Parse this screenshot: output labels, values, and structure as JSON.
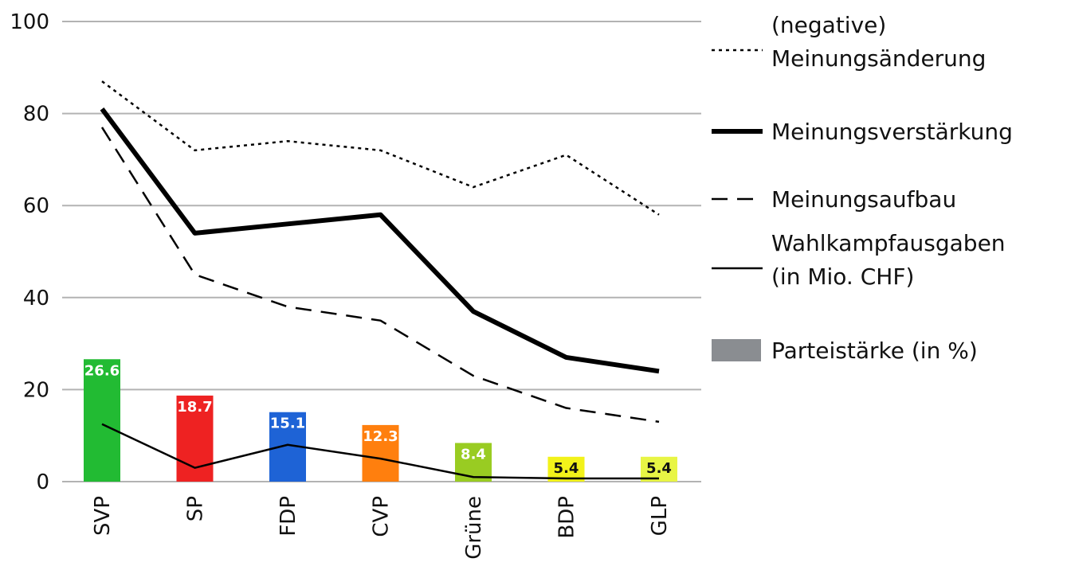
{
  "chart_data": {
    "type": "line",
    "categories": [
      "SVP",
      "SP",
      "FDP",
      "CVP",
      "Grüne",
      "BDP",
      "GLP"
    ],
    "ylim": [
      0,
      100
    ],
    "yticks": [
      "0",
      "20",
      "40",
      "60",
      "80",
      "100"
    ],
    "grid": true,
    "legend_position": "right",
    "series": [
      {
        "name": "(negative) Meinungsänderung",
        "style": "dotted",
        "values": [
          87,
          72,
          74,
          72,
          64,
          71,
          58
        ]
      },
      {
        "name": "Meinungsverstärkung",
        "style": "thick",
        "values": [
          81,
          54,
          56,
          58,
          37,
          27,
          24
        ]
      },
      {
        "name": "Meinungsaufbau",
        "style": "dashed",
        "values": [
          77,
          45,
          38,
          35,
          23,
          16,
          13
        ]
      },
      {
        "name": "Wahlkampfausgaben (in Mio. CHF)",
        "style": "thin",
        "values": [
          12.5,
          3,
          8,
          5,
          1,
          0.7,
          0.7
        ]
      }
    ],
    "bars": {
      "name": "Parteistärke (in %)",
      "values": [
        26.6,
        18.7,
        15.1,
        12.3,
        8.4,
        5.4,
        5.4
      ],
      "labels": [
        "26.6",
        "18.7",
        "15.1",
        "12.3",
        "8.4",
        "5.4",
        "5.4"
      ],
      "colors": [
        "#22bb33",
        "#ee2222",
        "#1e63d6",
        "#ff7f0e",
        "#99cc22",
        "#f2f21a",
        "#e8f545"
      ],
      "label_colors": [
        "#ffffff",
        "#ffffff",
        "#ffffff",
        "#ffffff",
        "#ffffff",
        "#111111",
        "#111111"
      ]
    }
  },
  "legend": {
    "items": [
      {
        "lines": [
          "(negative)",
          "Meinungsänderung"
        ],
        "style": "dotted"
      },
      {
        "lines": [
          "Meinungsverstärkung"
        ],
        "style": "thick"
      },
      {
        "lines": [
          "Meinungsaufbau"
        ],
        "style": "dashed"
      },
      {
        "lines": [
          "Wahlkampfausgaben",
          "(in Mio. CHF)"
        ],
        "style": "thin"
      },
      {
        "lines": [
          "Parteistärke (in %)"
        ],
        "style": "bar",
        "color": "#8a8d91"
      }
    ]
  },
  "colors": {
    "grid": "#b3b3b3",
    "line": "#000000",
    "axis_text": "#111111"
  }
}
